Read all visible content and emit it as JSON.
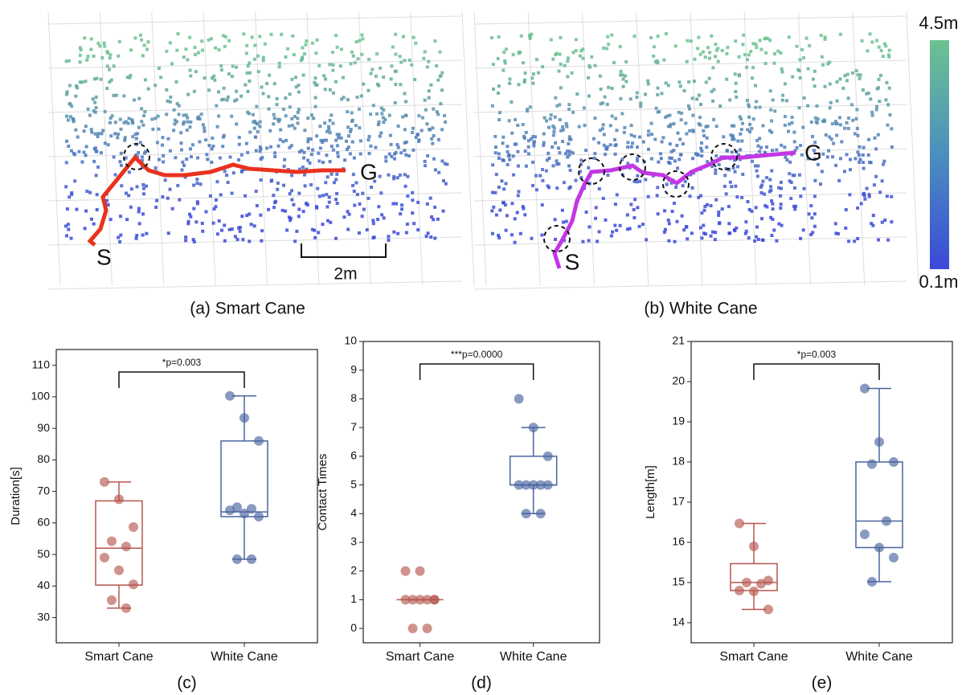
{
  "maps": [
    {
      "caption": "(a) Smart Cane",
      "start": "S",
      "goal": "G",
      "scale": "2m"
    },
    {
      "caption": "(b) White Cane",
      "start": "S",
      "goal": "G"
    }
  ],
  "colorbar": {
    "top": "4.5m",
    "bottom": "0.1m"
  },
  "chart_data": [
    {
      "type": "box",
      "caption": "(c)",
      "ylabel": "Duration[s]",
      "annotation": "*p=0.003",
      "categories": [
        "Smart Cane",
        "White Cane"
      ],
      "ylim": [
        22,
        115
      ],
      "yticks": [
        30,
        40,
        50,
        60,
        70,
        80,
        90,
        100,
        110
      ],
      "boxes": [
        {
          "color": "#b5574f",
          "min": 33,
          "q1": 40.3,
          "median": 52,
          "q3": 67,
          "max": 73,
          "points": [
            73,
            67.5,
            58.7,
            54.2,
            52.5,
            49,
            45,
            40.5,
            35.5,
            33
          ]
        },
        {
          "color": "#4a64a0",
          "min": 48.5,
          "q1": 62,
          "median": 63.5,
          "q3": 86,
          "max": 100.3,
          "points": [
            100.3,
            93.3,
            86,
            65,
            64.5,
            64,
            63,
            62,
            48.5,
            48.5
          ]
        }
      ]
    },
    {
      "type": "box",
      "caption": "(d)",
      "ylabel": "Contact Times",
      "annotation": "***p=0.0000",
      "categories": [
        "Smart Cane",
        "White Cane"
      ],
      "ylim": [
        -0.5,
        10
      ],
      "yticks": [
        0,
        1,
        2,
        3,
        4,
        5,
        6,
        7,
        8,
        9,
        10
      ],
      "boxes": [
        {
          "color": "#b5574f",
          "min": 1,
          "q1": 1,
          "median": 1,
          "q3": 1,
          "max": 1,
          "points": [
            2,
            2,
            1,
            1,
            1,
            1,
            1,
            1,
            0,
            0
          ]
        },
        {
          "color": "#4a64a0",
          "min": 4,
          "q1": 5,
          "median": 5,
          "q3": 6,
          "max": 7,
          "points": [
            8,
            7,
            6,
            5,
            5,
            5,
            5,
            5,
            4,
            4
          ]
        }
      ]
    },
    {
      "type": "box",
      "caption": "(e)",
      "ylabel": "Length[m]",
      "annotation": "*p=0.003",
      "categories": [
        "Smart Cane",
        "White Cane"
      ],
      "ylim": [
        13.5,
        21
      ],
      "yticks": [
        14,
        15,
        16,
        17,
        18,
        19,
        20,
        21
      ],
      "boxes": [
        {
          "color": "#b5574f",
          "min": 14.33,
          "q1": 14.8,
          "median": 15,
          "q3": 15.47,
          "max": 16.47,
          "points": [
            16.47,
            15.9,
            15.05,
            15,
            14.97,
            14.8,
            14.78,
            14.33
          ]
        },
        {
          "color": "#4a64a0",
          "min": 15.02,
          "q1": 15.87,
          "median": 16.53,
          "q3": 18,
          "max": 19.83,
          "points": [
            19.83,
            18.5,
            18,
            17.95,
            16.53,
            16.2,
            15.87,
            15.62,
            15.02
          ]
        }
      ]
    }
  ]
}
